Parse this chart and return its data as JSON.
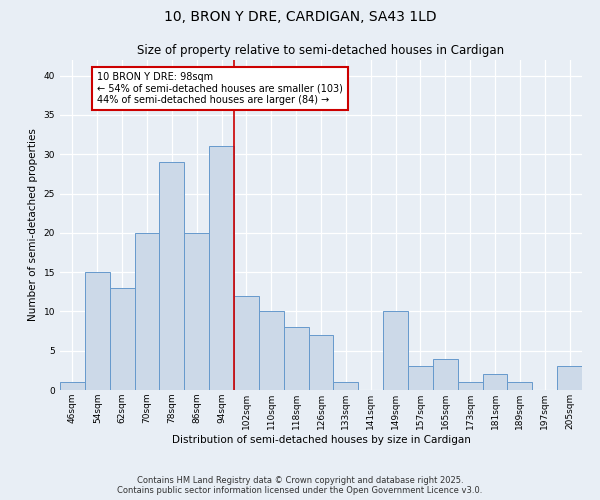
{
  "title": "10, BRON Y DRE, CARDIGAN, SA43 1LD",
  "subtitle": "Size of property relative to semi-detached houses in Cardigan",
  "xlabel": "Distribution of semi-detached houses by size in Cardigan",
  "ylabel": "Number of semi-detached properties",
  "categories": [
    "46sqm",
    "54sqm",
    "62sqm",
    "70sqm",
    "78sqm",
    "86sqm",
    "94sqm",
    "102sqm",
    "110sqm",
    "118sqm",
    "126sqm",
    "133sqm",
    "141sqm",
    "149sqm",
    "157sqm",
    "165sqm",
    "173sqm",
    "181sqm",
    "189sqm",
    "197sqm",
    "205sqm"
  ],
  "values": [
    1,
    15,
    13,
    20,
    29,
    20,
    31,
    12,
    10,
    8,
    7,
    1,
    0,
    10,
    3,
    4,
    1,
    2,
    1,
    0,
    3
  ],
  "bar_color": "#ccd9e8",
  "bar_edge_color": "#6699cc",
  "prop_line_index": 6.5,
  "annotation_text": "10 BRON Y DRE: 98sqm\n← 54% of semi-detached houses are smaller (103)\n44% of semi-detached houses are larger (84) →",
  "annotation_box_facecolor": "#ffffff",
  "annotation_box_edgecolor": "#cc0000",
  "vertical_line_color": "#cc0000",
  "ylim": [
    0,
    42
  ],
  "yticks": [
    0,
    5,
    10,
    15,
    20,
    25,
    30,
    35,
    40
  ],
  "footer_text": "Contains HM Land Registry data © Crown copyright and database right 2025.\nContains public sector information licensed under the Open Government Licence v3.0.",
  "background_color": "#e8eef5",
  "grid_color": "#ffffff",
  "title_fontsize": 10,
  "subtitle_fontsize": 8.5,
  "axis_label_fontsize": 7.5,
  "tick_fontsize": 6.5,
  "annotation_fontsize": 7,
  "footer_fontsize": 6
}
